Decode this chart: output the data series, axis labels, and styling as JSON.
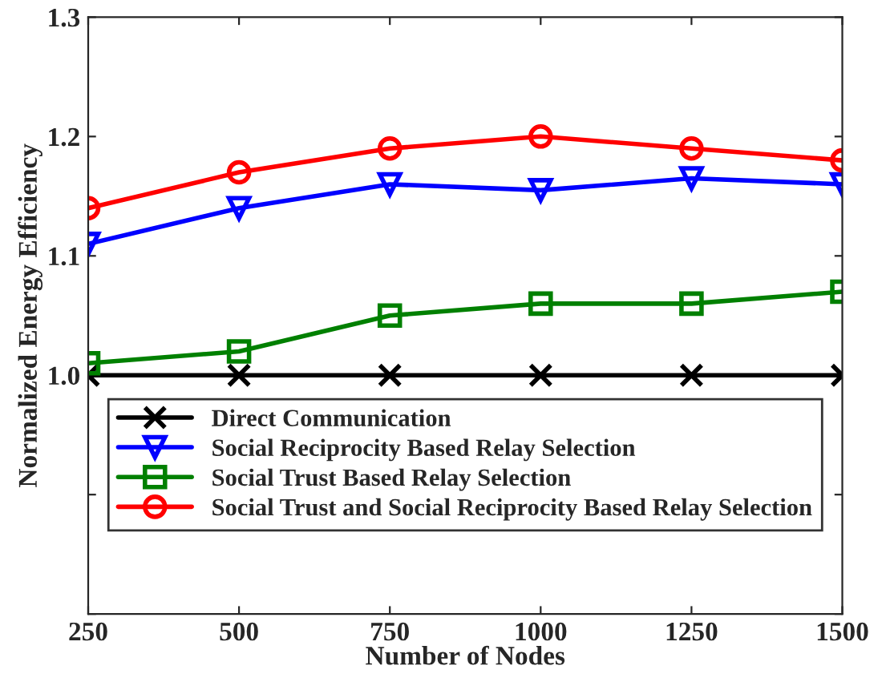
{
  "chart_data": {
    "type": "line",
    "xlabel": "Number of Nodes",
    "ylabel": "Normalized Energy Efficiency",
    "x": [
      250,
      500,
      750,
      1000,
      1250,
      1500
    ],
    "series": [
      {
        "name": "Direct Communication",
        "color": "#000000",
        "marker": "cross",
        "values": [
          1.0,
          1.0,
          1.0,
          1.0,
          1.0,
          1.0
        ]
      },
      {
        "name": "Social Reciprocity Based Relay Selection",
        "color": "#0000ff",
        "marker": "triangle",
        "values": [
          1.11,
          1.14,
          1.16,
          1.155,
          1.165,
          1.16
        ]
      },
      {
        "name": "Social Trust Based Relay Selection",
        "color": "#008000",
        "marker": "square",
        "values": [
          1.01,
          1.02,
          1.05,
          1.06,
          1.06,
          1.07
        ]
      },
      {
        "name": "Social Trust and Social Reciprocity Based Relay Selection",
        "color": "#ff0000",
        "marker": "circle",
        "values": [
          1.14,
          1.17,
          1.19,
          1.2,
          1.19,
          1.18
        ]
      }
    ],
    "xlim": [
      250,
      1500
    ],
    "xticks": [
      250,
      500,
      750,
      1000,
      1250,
      1500
    ],
    "ylim": [
      0.8,
      1.3
    ],
    "yticks": [
      {
        "value": 0.8,
        "label": null
      },
      {
        "value": 0.9,
        "label": null
      },
      {
        "value": 1.0,
        "label": "1.0"
      },
      {
        "value": 1.1,
        "label": "1.1"
      },
      {
        "value": 1.2,
        "label": "1.2"
      },
      {
        "value": 1.3,
        "label": "1.3"
      }
    ],
    "grid": false,
    "legend": "bottom"
  }
}
